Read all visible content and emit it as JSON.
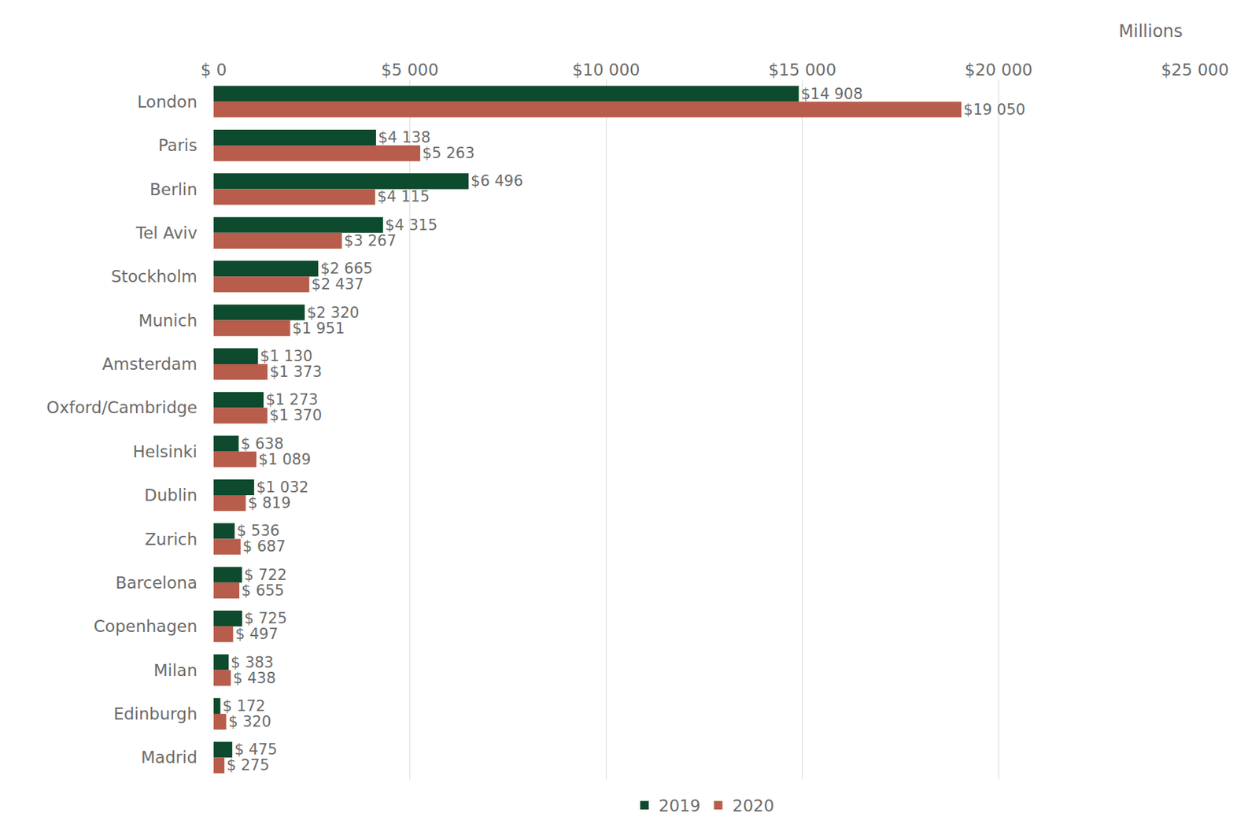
{
  "chart_data": {
    "type": "bar",
    "orientation": "horizontal",
    "xlabel": "Millions",
    "categories": [
      "London",
      "Paris",
      "Berlin",
      "Tel Aviv",
      "Stockholm",
      "Munich",
      "Amsterdam",
      "Oxford/Cambridge",
      "Helsinki",
      "Dublin",
      "Zurich",
      "Barcelona",
      "Copenhagen",
      "Milan",
      "Edinburgh",
      "Madrid"
    ],
    "series": [
      {
        "name": "2019",
        "color": "#0d4a2e",
        "values": [
          14908,
          4138,
          6496,
          4315,
          2665,
          2320,
          1130,
          1273,
          638,
          1032,
          536,
          722,
          725,
          383,
          172,
          475
        ],
        "value_labels": [
          "$14 908",
          "$4 138",
          "$6 496",
          "$4 315",
          "$2 665",
          "$2 320",
          "$1 130",
          "$1 273",
          "$ 638",
          "$1 032",
          "$ 536",
          "$ 722",
          "$ 725",
          "$ 383",
          "$ 172",
          "$ 475"
        ]
      },
      {
        "name": "2020",
        "color": "#b85c4b",
        "values": [
          19050,
          5263,
          4115,
          3267,
          2437,
          1951,
          1373,
          1370,
          1089,
          819,
          687,
          655,
          497,
          438,
          320,
          275
        ],
        "value_labels": [
          "$19 050",
          "$5 263",
          "$4 115",
          "$3 267",
          "$2 437",
          "$1 951",
          "$1 373",
          "$1 370",
          "$1 089",
          "$ 819",
          "$ 687",
          "$ 655",
          "$ 497",
          "$ 438",
          "$ 320",
          "$ 275"
        ]
      }
    ],
    "xlim": [
      0,
      25000
    ],
    "xticks": [
      {
        "value": 0,
        "label": "$ 0"
      },
      {
        "value": 5000,
        "label": "$5 000"
      },
      {
        "value": 10000,
        "label": "$10 000"
      },
      {
        "value": 15000,
        "label": "$15 000"
      },
      {
        "value": 20000,
        "label": "$20 000"
      },
      {
        "value": 25000,
        "label": "$25 000"
      }
    ],
    "grid": true,
    "legend": "bottom",
    "data_labels": true
  }
}
